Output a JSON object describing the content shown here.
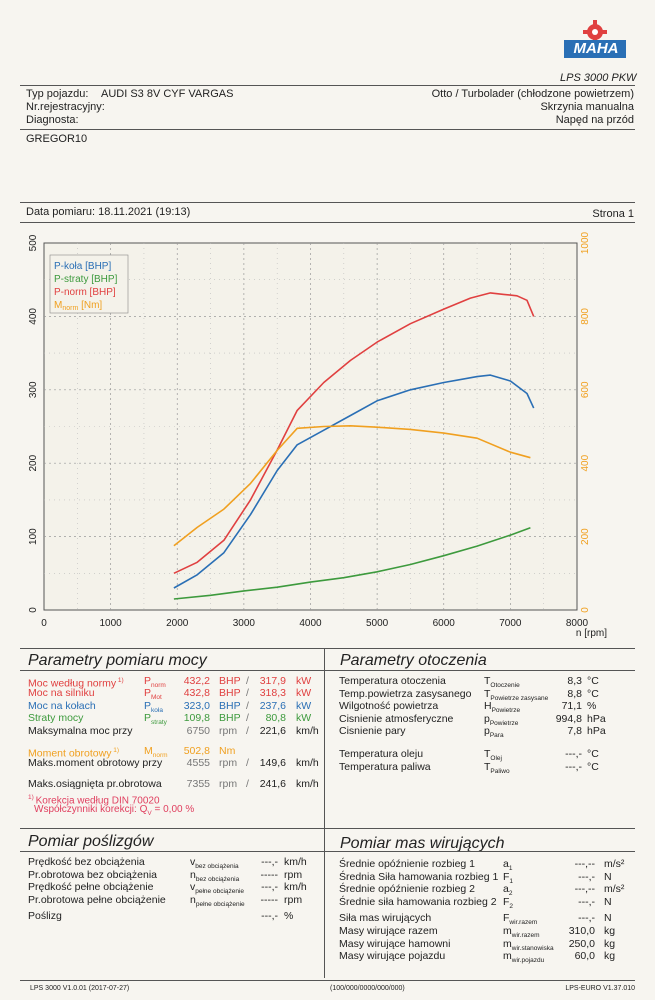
{
  "logo": {
    "brand": "MAHA",
    "model": "LPS 3000 PKW"
  },
  "header": {
    "vehicle_label": "Typ pojazdu:",
    "vehicle_value": "AUDI S3 8V CYF VARGAS",
    "reg_label": "Nr.rejestracyjny:",
    "diag_label": "Diagnosta:",
    "engine_info": "Otto / Turbolader (chłodzone powietrzem)",
    "gearbox": "Skrzynia manualna",
    "drive": "Napęd na przód",
    "customer": "GREGOR10",
    "date_label": "Data pomiaru: 18.11.2021 (19:13)",
    "page_label": "Strona 1"
  },
  "chart_data": {
    "type": "line",
    "x_label": "n [rpm]",
    "x_ticks": [
      "0",
      "1000",
      "2000",
      "3000",
      "4000",
      "5000",
      "6000",
      "7000",
      "8000"
    ],
    "xlim": [
      0,
      8000
    ],
    "y_left_ticks": [
      "0",
      "100",
      "200",
      "300",
      "400",
      "500"
    ],
    "ylim_left": [
      0,
      500
    ],
    "y_right_ticks": [
      "0",
      "200",
      "400",
      "600",
      "800",
      "1000"
    ],
    "ylim_right": [
      0,
      1000
    ],
    "legend": [
      {
        "label": "P-koła [BHP]",
        "color": "#2a6fb5"
      },
      {
        "label": "P-straty [BHP]",
        "color": "#3d9a3d"
      },
      {
        "label": "P-norm [BHP]",
        "color": "#e04040"
      },
      {
        "label": "M_norm [Nm]",
        "color": "#f0a020"
      }
    ],
    "series": [
      {
        "name": "P-koła",
        "color": "#2a6fb5",
        "axis": "left",
        "x": [
          1950,
          2300,
          2700,
          3100,
          3500,
          3800,
          4200,
          4600,
          5000,
          5500,
          6000,
          6500,
          6700,
          7000,
          7250,
          7350
        ],
        "y": [
          30,
          48,
          78,
          130,
          190,
          225,
          245,
          265,
          285,
          300,
          310,
          318,
          320,
          312,
          295,
          275
        ]
      },
      {
        "name": "P-straty",
        "color": "#3d9a3d",
        "axis": "left",
        "x": [
          1950,
          2500,
          3000,
          3500,
          4000,
          4500,
          5000,
          5500,
          6000,
          6500,
          7000,
          7300
        ],
        "y": [
          15,
          20,
          26,
          31,
          38,
          44,
          52,
          62,
          74,
          87,
          102,
          112
        ]
      },
      {
        "name": "P-norm",
        "color": "#e04040",
        "axis": "left",
        "x": [
          1950,
          2300,
          2700,
          3100,
          3500,
          3800,
          4200,
          4600,
          5000,
          5500,
          6000,
          6400,
          6700,
          6900,
          7100,
          7250,
          7350
        ],
        "y": [
          50,
          65,
          95,
          150,
          218,
          272,
          310,
          340,
          365,
          390,
          410,
          425,
          432,
          430,
          428,
          422,
          400
        ]
      },
      {
        "name": "M_norm",
        "color": "#f0a020",
        "axis": "right",
        "x": [
          1950,
          2300,
          2700,
          3100,
          3500,
          3800,
          4200,
          4600,
          5000,
          5500,
          6000,
          6500,
          7000,
          7300
        ],
        "y": [
          175,
          225,
          275,
          345,
          435,
          495,
          500,
          502,
          498,
          492,
          482,
          468,
          430,
          415
        ]
      }
    ]
  },
  "params": {
    "title": "Parametry pomiaru mocy",
    "rows": [
      {
        "label": "Moc według normy",
        "sup": "1)",
        "sym": "P",
        "sub": "norm",
        "v1": "432,2",
        "u1": "BHP",
        "v2": "317,9",
        "u2": "kW"
      },
      {
        "label": "Moc na silniku",
        "sup": "",
        "sym": "P",
        "sub": "Mot",
        "v1": "432,8",
        "u1": "BHP",
        "v2": "318,3",
        "u2": "kW"
      },
      {
        "label": "Moc na kołach",
        "sup": "",
        "sym": "P",
        "sub": "koła",
        "v1": "323,0",
        "u1": "BHP",
        "v2": "237,6",
        "u2": "kW"
      },
      {
        "label": "Straty mocy",
        "sup": "",
        "sym": "P",
        "sub": "straty",
        "v1": "109,8",
        "u1": "BHP",
        "v2": "80,8",
        "u2": "kW"
      }
    ],
    "max_power": {
      "label": "Maksymalna moc przy",
      "rpm": "6750",
      "unit": "rpm",
      "speed": "221,6",
      "speed_unit": "km/h"
    },
    "torque": {
      "label": "Moment obrotowy",
      "sup": "1)",
      "sym": "M",
      "sub": "norm",
      "value": "502,8",
      "unit": "Nm"
    },
    "max_torque": {
      "label": "Maks.moment obrotowy przy",
      "rpm": "4555",
      "unit": "rpm",
      "speed": "149,6",
      "speed_unit": "km/h"
    },
    "max_rpm": {
      "label": "Maks.osiągnięta pr.obrotowa",
      "rpm": "7355",
      "unit": "rpm",
      "speed": "241,6",
      "speed_unit": "km/h"
    },
    "correction": "Korekcja według DIN 70020",
    "correction_sup": "1)",
    "corr_factor": "Współczynniki korekcji: Q",
    "corr_factor_sub": "V",
    "corr_value": "=   0,00 %"
  },
  "env": {
    "title": "Parametry otoczenia",
    "rows": [
      {
        "label": "Temperatura otoczenia",
        "sym": "T",
        "sub": "Otoczenie",
        "value": "8,3",
        "unit": "°C"
      },
      {
        "label": "Temp.powietrza zasysanego",
        "sym": "T",
        "sub": "Powietrze zasysane",
        "value": "8,8",
        "unit": "°C"
      },
      {
        "label": "Wilgotność powietrza",
        "sym": "H",
        "sub": "Powietrze",
        "value": "71,1",
        "unit": "%"
      },
      {
        "label": "Cisnienie atmosferyczne",
        "sym": "p",
        "sub": "Powietrze",
        "value": "994,8",
        "unit": "hPa"
      },
      {
        "label": "Cisnienie pary",
        "sym": "p",
        "sub": "Para",
        "value": "7,8",
        "unit": "hPa"
      },
      {
        "label": "Temperatura oleju",
        "sym": "T",
        "sub": "Olej",
        "value": "---,-",
        "unit": "°C"
      },
      {
        "label": "Temperatura paliwa",
        "sym": "T",
        "sub": "Paliwo",
        "value": "---,-",
        "unit": "°C"
      }
    ]
  },
  "slip": {
    "title": "Pomiar poślizgów",
    "rows": [
      {
        "label": "Prędkość bez obciążenia",
        "sym": "v",
        "sub": "bez obciążenia",
        "value": "---,-",
        "unit": "km/h"
      },
      {
        "label": "Pr.obrotowa bez obciążenia",
        "sym": "n",
        "sub": "bez obciążenia",
        "value": "-----",
        "unit": "rpm"
      },
      {
        "label": "Prędkość pełne obciążenie",
        "sym": "v",
        "sub": "pełne obciążenie",
        "value": "---,-",
        "unit": "km/h"
      },
      {
        "label": "Pr.obrotowa pełne obciążenie",
        "sym": "n",
        "sub": "pełne obciążenie",
        "value": "-----",
        "unit": "rpm"
      },
      {
        "label": "Poślizg",
        "sym": "",
        "sub": "",
        "value": "---,-",
        "unit": "%"
      }
    ]
  },
  "mass": {
    "title": "Pomiar mas wirujących",
    "rows": [
      {
        "label": "Średnie opóźnienie rozbieg 1",
        "sym": "a",
        "sub": "1",
        "value": "---,--",
        "unit": "m/s²"
      },
      {
        "label": "Średnia Siła hamowania rozbieg 1",
        "sym": "F",
        "sub": "1",
        "value": "---,-",
        "unit": "N"
      },
      {
        "label": "Średnie opóźnienie rozbieg 2",
        "sym": "a",
        "sub": "2",
        "value": "---,--",
        "unit": "m/s²"
      },
      {
        "label": "Średnie siła hamowania rozbieg 2",
        "sym": "F",
        "sub": "2",
        "value": "---,-",
        "unit": "N"
      },
      {
        "label": "Siła mas wirujących",
        "sym": "F",
        "sub": "wir.razem",
        "value": "---,-",
        "unit": "N"
      },
      {
        "label": "Masy wirujące razem",
        "sym": "m",
        "sub": "wir.razem",
        "value": "310,0",
        "unit": "kg"
      },
      {
        "label": "Masy wirujące hamowni",
        "sym": "m",
        "sub": "wir.stanowiska",
        "value": "250,0",
        "unit": "kg"
      },
      {
        "label": "Masy wirujące pojazdu",
        "sym": "m",
        "sub": "wir.pojazdu",
        "value": "60,0",
        "unit": "kg"
      }
    ]
  },
  "footer": {
    "left": "LPS 3000 V1.0.01 (2017-07-27)",
    "center": "(100/000/0000/000/000)",
    "right": "LPS-EURO V1.37.010"
  }
}
